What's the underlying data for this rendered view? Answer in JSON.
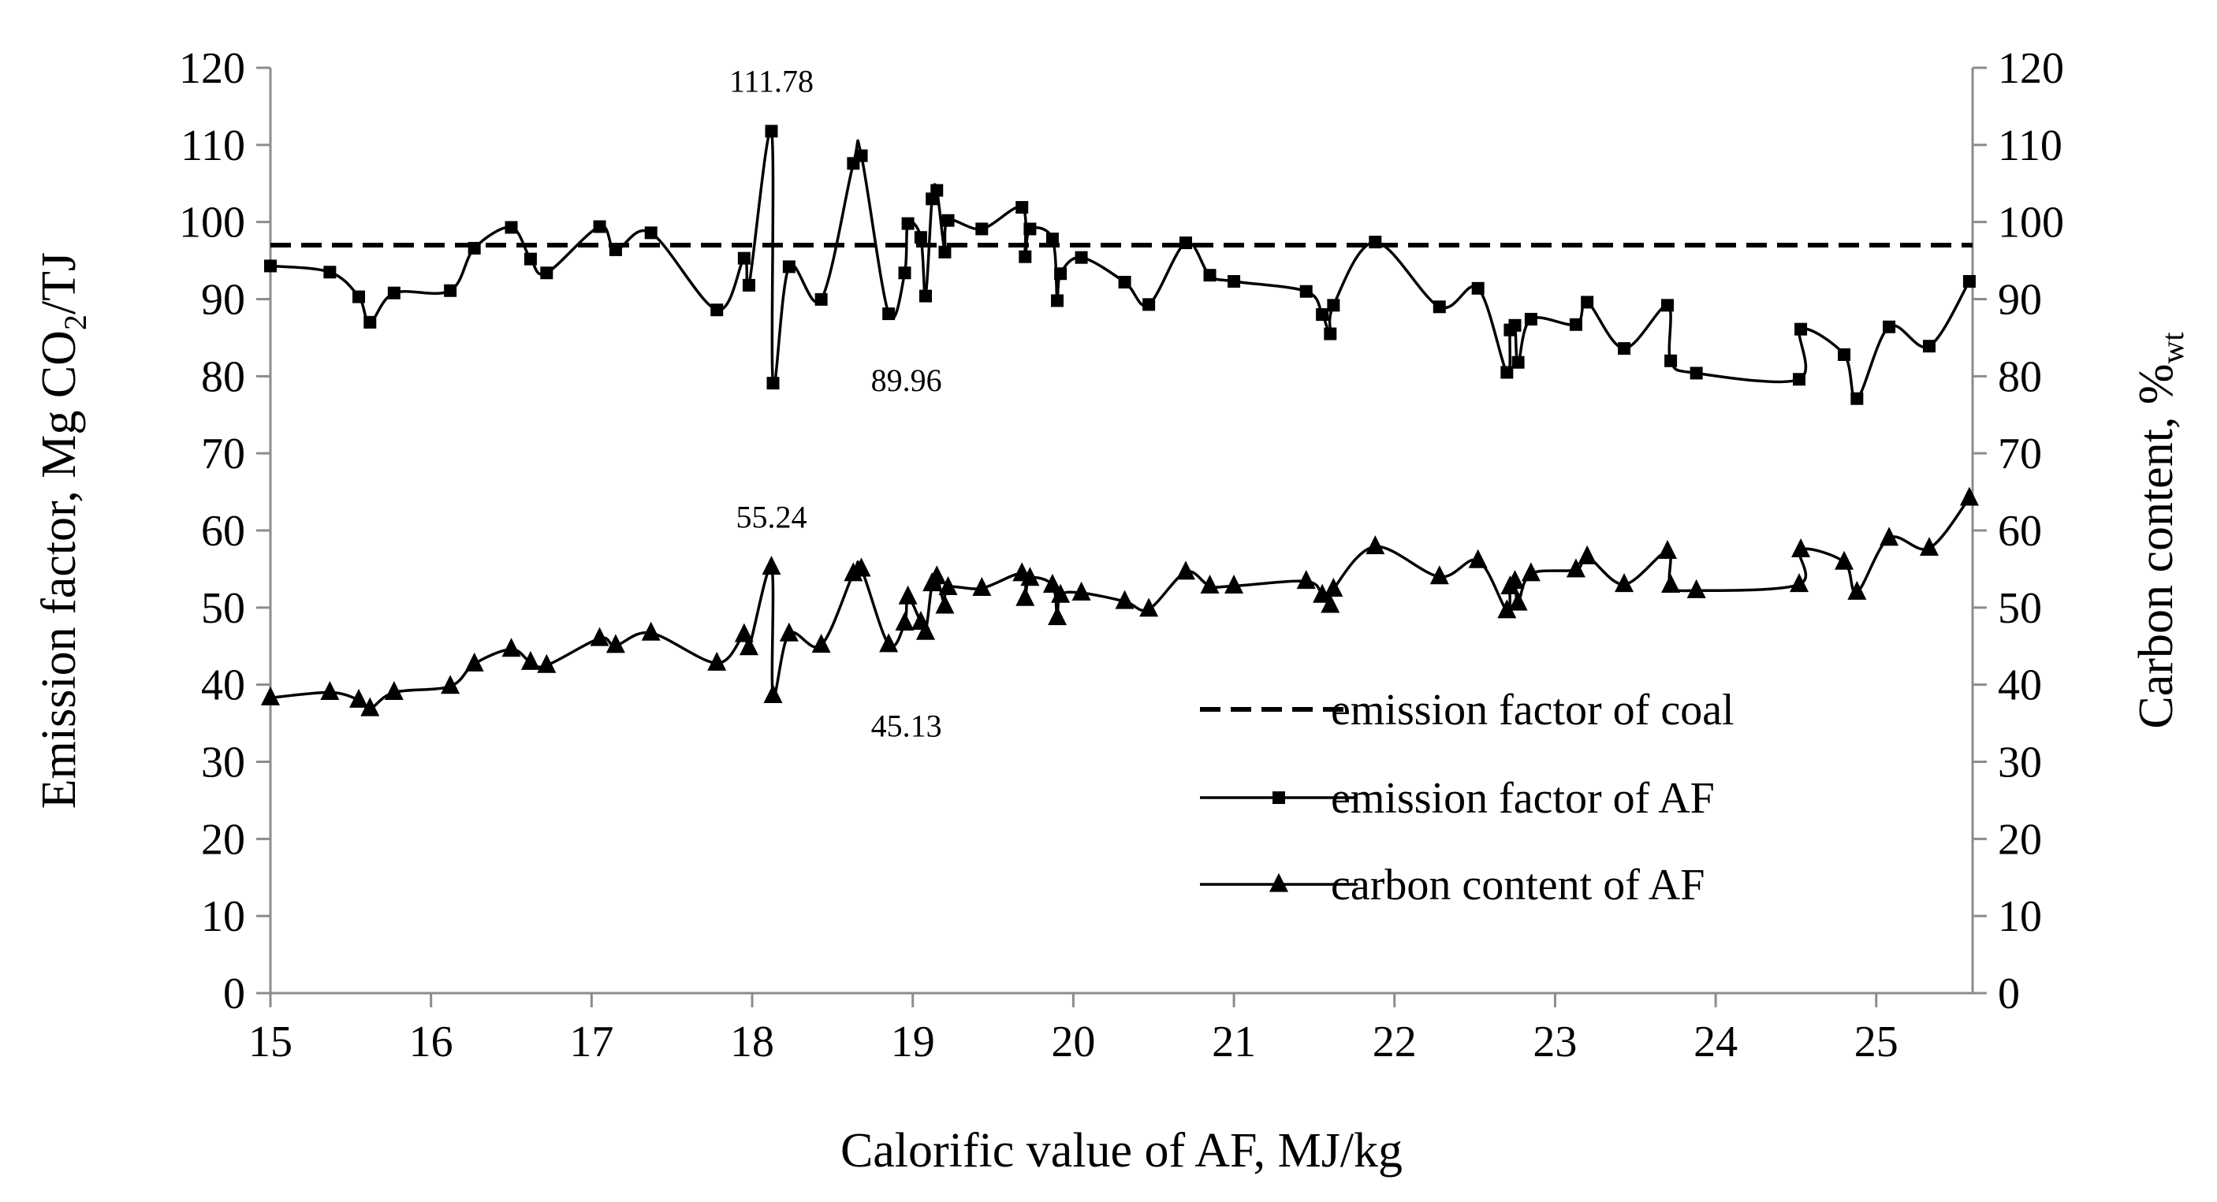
{
  "chart_data": {
    "type": "line",
    "title": "",
    "xlabel": "Calorific value of AF, MJ/kg",
    "ylabel_left": "Emission factor, Mg CO",
    "ylabel_left_sub": "2",
    "ylabel_left_tail": "/TJ",
    "ylabel_right": "Carbon content, %",
    "ylabel_right_sub": "wt",
    "xlim": [
      15,
      25.6
    ],
    "ylim": [
      0,
      120
    ],
    "xticks": [
      "15",
      "16",
      "17",
      "18",
      "19",
      "20",
      "21",
      "22",
      "23",
      "24",
      "25"
    ],
    "yticks": [
      "0",
      "10",
      "20",
      "30",
      "40",
      "50",
      "60",
      "70",
      "80",
      "90",
      "100",
      "110",
      "120"
    ],
    "legend_position": "lower-right",
    "series": [
      {
        "name": "emission factor of coal",
        "style": "dashed",
        "marker": "none",
        "x": [
          15,
          25.6
        ],
        "y": [
          97,
          97
        ]
      },
      {
        "name": "emission factor of AF",
        "style": "solid",
        "marker": "square",
        "x": [
          15.0,
          15.37,
          15.55,
          15.62,
          15.77,
          16.12,
          16.27,
          16.5,
          16.62,
          16.72,
          17.05,
          17.15,
          17.37,
          17.78,
          17.95,
          17.98,
          18.12,
          18.13,
          18.23,
          18.43,
          18.63,
          18.68,
          18.85,
          18.95,
          18.97,
          19.05,
          19.08,
          19.12,
          19.15,
          19.2,
          19.22,
          19.43,
          19.68,
          19.7,
          19.73,
          19.87,
          19.9,
          19.92,
          20.05,
          20.32,
          20.47,
          20.7,
          20.85,
          21.0,
          21.45,
          21.55,
          21.6,
          21.62,
          21.88,
          22.28,
          22.52,
          22.7,
          22.72,
          22.75,
          22.77,
          22.85,
          23.13,
          23.2,
          23.43,
          23.7,
          23.72,
          23.88,
          24.52,
          24.53,
          24.8,
          24.88,
          25.08,
          25.33,
          25.58
        ],
        "y": [
          94.3,
          93.5,
          90.3,
          87.0,
          90.8,
          91.1,
          96.6,
          99.3,
          95.2,
          93.4,
          99.4,
          96.4,
          98.6,
          88.6,
          95.3,
          91.8,
          111.78,
          79.1,
          94.2,
          89.96,
          107.6,
          108.6,
          88.1,
          93.4,
          99.8,
          98.0,
          90.4,
          103.0,
          104.1,
          96.1,
          100.2,
          99.1,
          101.9,
          95.5,
          99.1,
          97.8,
          89.8,
          93.3,
          95.4,
          92.2,
          89.3,
          97.3,
          93.1,
          92.3,
          91.0,
          88.0,
          85.5,
          89.2,
          97.4,
          89.0,
          91.4,
          80.5,
          86.0,
          86.6,
          81.8,
          87.4,
          86.7,
          89.6,
          83.6,
          89.2,
          82.0,
          80.4,
          79.6,
          86.1,
          82.8,
          77.1,
          86.4,
          83.9,
          92.3
        ]
      },
      {
        "name": "carbon content of AF",
        "style": "solid",
        "marker": "triangle",
        "x": [
          15.0,
          15.37,
          15.55,
          15.62,
          15.77,
          16.12,
          16.27,
          16.5,
          16.62,
          16.72,
          17.05,
          17.15,
          17.37,
          17.78,
          17.95,
          17.98,
          18.12,
          18.13,
          18.23,
          18.43,
          18.63,
          18.68,
          18.85,
          18.95,
          18.97,
          19.05,
          19.08,
          19.12,
          19.15,
          19.2,
          19.22,
          19.43,
          19.68,
          19.7,
          19.73,
          19.87,
          19.9,
          19.92,
          20.05,
          20.32,
          20.47,
          20.7,
          20.85,
          21.0,
          21.45,
          21.55,
          21.6,
          21.62,
          21.88,
          22.28,
          22.52,
          22.7,
          22.72,
          22.75,
          22.77,
          22.85,
          23.13,
          23.2,
          23.43,
          23.7,
          23.72,
          23.88,
          24.52,
          24.53,
          24.8,
          24.88,
          25.08,
          25.33,
          25.58
        ],
        "y": [
          38.3,
          39.0,
          38.0,
          36.9,
          39.0,
          39.8,
          42.7,
          44.6,
          42.9,
          42.5,
          46.0,
          45.1,
          46.7,
          42.8,
          46.5,
          44.8,
          55.24,
          38.6,
          46.6,
          45.13,
          54.4,
          55.0,
          45.2,
          48.0,
          51.4,
          48.1,
          46.8,
          53.1,
          54.0,
          50.2,
          52.6,
          52.5,
          54.4,
          51.2,
          53.8,
          52.9,
          48.7,
          51.6,
          51.9,
          50.8,
          49.8,
          54.6,
          52.8,
          52.8,
          53.4,
          51.6,
          50.3,
          52.4,
          57.9,
          54.0,
          56.1,
          49.6,
          52.7,
          53.4,
          50.6,
          54.4,
          54.9,
          56.6,
          53.0,
          57.3,
          52.9,
          52.2,
          53.0,
          57.5,
          55.9,
          52.0,
          59.0,
          57.7,
          64.2
        ]
      }
    ],
    "annotations": [
      {
        "text": "111.78",
        "x": 18.12,
        "y": 111.78
      },
      {
        "text": "89.96",
        "x": 18.43,
        "y": 89.96
      },
      {
        "text": "55.24",
        "x": 18.12,
        "y": 55.24
      },
      {
        "text": "45.13",
        "x": 18.43,
        "y": 45.13
      }
    ]
  }
}
